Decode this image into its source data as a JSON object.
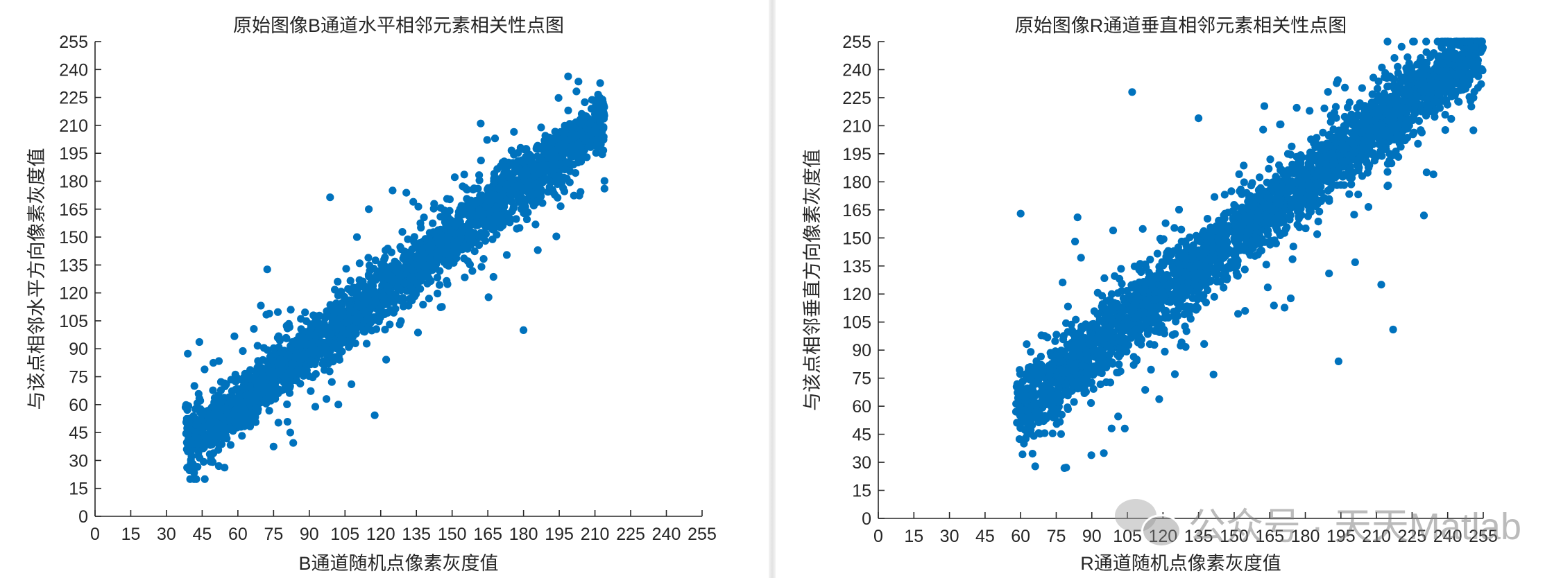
{
  "colors": {
    "marker": "#0072BD",
    "axis": "#262626",
    "text": "#262626"
  },
  "watermark": {
    "icon": "wechat-icon",
    "text": "公众号 · 天天Matlab"
  },
  "chart_data": [
    {
      "type": "scatter",
      "title": "原始图像B通道水平相邻元素相关性点图",
      "xlabel": "B通道随机点像素灰度值",
      "ylabel": "与该点相邻水平方向像素灰度值",
      "xlim": [
        0,
        255
      ],
      "ylim": [
        0,
        255
      ],
      "xticks": [
        0,
        15,
        30,
        45,
        60,
        75,
        90,
        105,
        120,
        135,
        150,
        165,
        180,
        195,
        210,
        225,
        240,
        255
      ],
      "yticks": [
        0,
        15,
        30,
        45,
        60,
        75,
        90,
        105,
        120,
        135,
        150,
        165,
        180,
        195,
        210,
        225,
        240,
        255
      ],
      "trend": {
        "x_range": [
          38,
          214
        ],
        "noise": 8,
        "slope": 1.0
      },
      "outliers": [
        [
          162,
          211
        ],
        [
          180,
          100
        ],
        [
          125,
          175
        ],
        [
          115,
          165
        ],
        [
          186,
          143
        ],
        [
          110,
          150
        ],
        [
          82,
          45
        ],
        [
          52,
          27
        ]
      ],
      "point_count": 2600,
      "grid": false
    },
    {
      "type": "scatter",
      "title": "原始图像R通道垂直相邻元素相关性点图",
      "xlabel": "R通道随机点像素灰度值",
      "ylabel": "与该点相邻垂直方向像素灰度值",
      "xlim": [
        0,
        255
      ],
      "ylim": [
        0,
        255
      ],
      "xticks": [
        0,
        15,
        30,
        45,
        60,
        75,
        90,
        105,
        120,
        135,
        150,
        165,
        180,
        195,
        210,
        225,
        240,
        255
      ],
      "yticks": [
        0,
        15,
        30,
        45,
        60,
        75,
        90,
        105,
        120,
        135,
        150,
        165,
        180,
        195,
        210,
        225,
        240,
        255
      ],
      "trend": {
        "x_range": [
          58,
          255
        ],
        "noise": 10,
        "slope": 1.0
      },
      "outliers": [
        [
          107,
          228
        ],
        [
          135,
          214
        ],
        [
          185,
          152
        ],
        [
          190,
          131
        ],
        [
          194,
          84
        ],
        [
          212,
          125
        ],
        [
          217,
          101
        ],
        [
          230,
          162
        ],
        [
          234,
          184
        ],
        [
          60,
          163
        ],
        [
          84,
          161
        ],
        [
          99,
          154
        ],
        [
          110,
          109
        ],
        [
          201,
          137
        ]
      ],
      "point_count": 3000,
      "grid": false
    }
  ]
}
